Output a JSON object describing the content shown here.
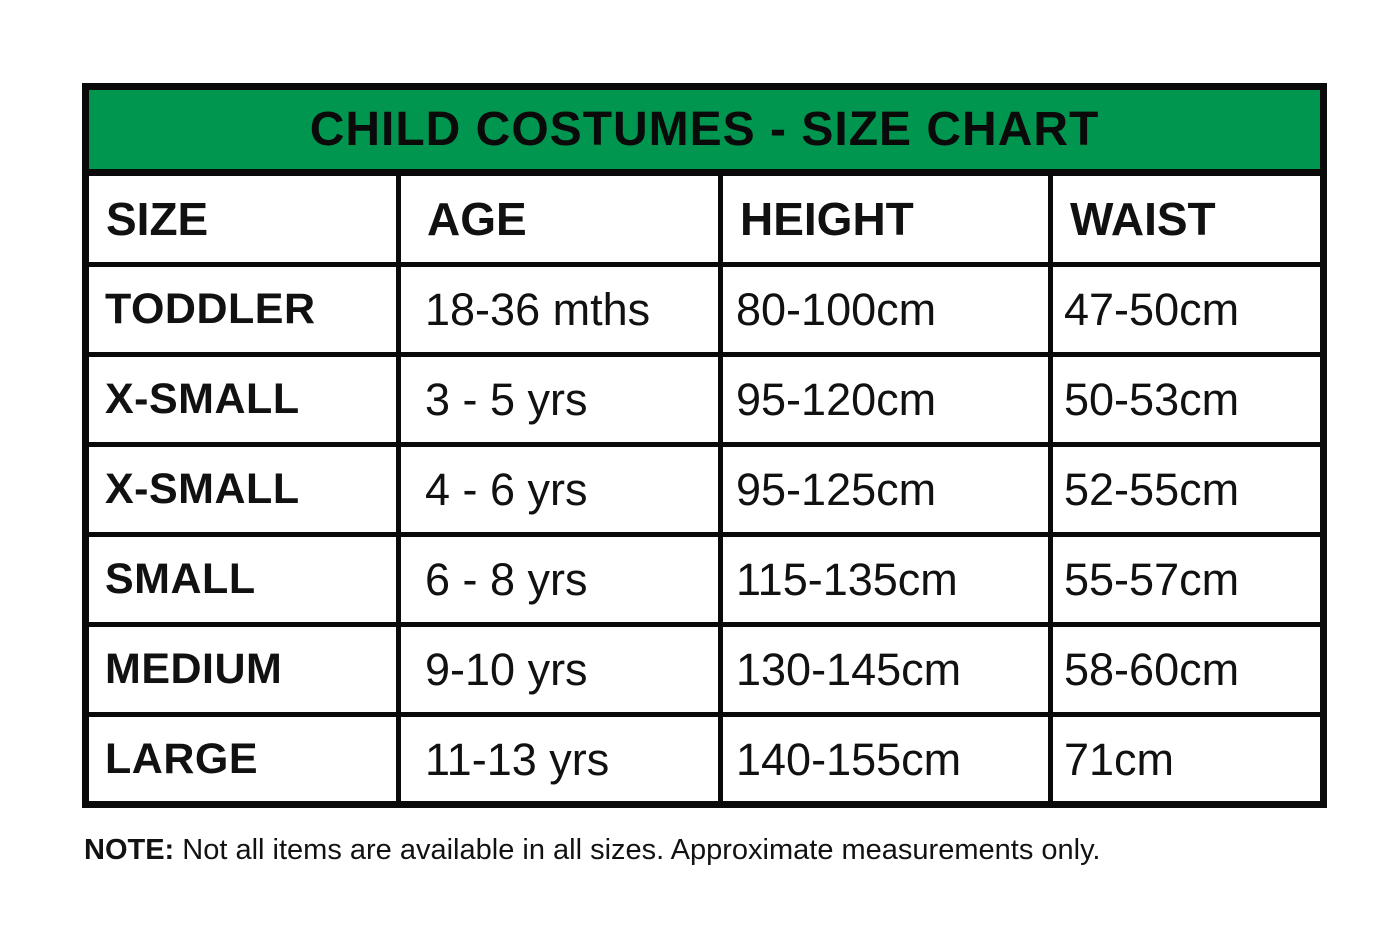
{
  "title": "CHILD COSTUMES - SIZE CHART",
  "columns": [
    "SIZE",
    "AGE",
    "HEIGHT",
    "WAIST"
  ],
  "table": {
    "rows": [
      {
        "size": "TODDLER",
        "age": "18-36 mths",
        "height": "80-100cm",
        "waist": "47-50cm"
      },
      {
        "size": "X-SMALL",
        "age": "3 - 5 yrs",
        "height": "95-120cm",
        "waist": "50-53cm"
      },
      {
        "size": "X-SMALL",
        "age": "4 - 6 yrs",
        "height": "95-125cm",
        "waist": "52-55cm"
      },
      {
        "size": "SMALL",
        "age": "6 - 8 yrs",
        "height": "115-135cm",
        "waist": "55-57cm"
      },
      {
        "size": "MEDIUM",
        "age": "9-10 yrs",
        "height": "130-145cm",
        "waist": "58-60cm"
      },
      {
        "size": "LARGE",
        "age": "11-13 yrs",
        "height": "140-155cm",
        "waist": "71cm"
      }
    ]
  },
  "note": {
    "label": "NOTE:",
    "text": " Not all items are available in all sizes. Approximate measurements only."
  },
  "colors": {
    "header_bg": "#009650",
    "border": "#0a0a0a",
    "text": "#111111"
  }
}
